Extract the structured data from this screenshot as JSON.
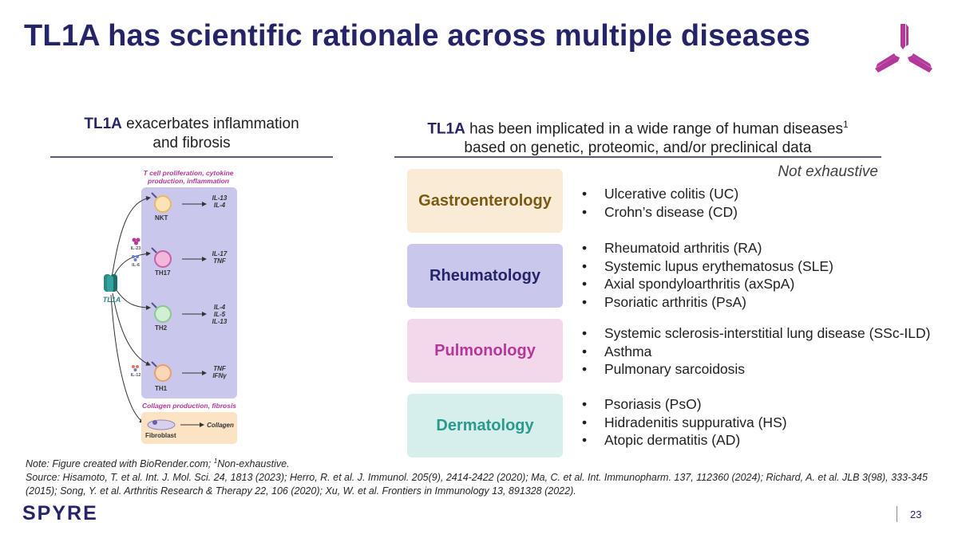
{
  "title": "TL1A has scientific rationale across multiple diseases",
  "left_header": {
    "strong": "TL1A",
    "line1_rest": " exacerbates inflammation",
    "line2": "and fibrosis"
  },
  "right_header": {
    "strong": "TL1A",
    "line1_rest": " has been implicated in a wide range of human diseases",
    "sup": "1",
    "line2": "based on genetic, proteomic, and/or preclinical data"
  },
  "not_exhaustive": "Not exhaustive",
  "figure": {
    "top_caption_1": "T cell proliferation, cytokine",
    "top_caption_2": "production, inflammation",
    "cells": [
      {
        "name": "NKT",
        "out1": "IL-13",
        "out2": "IL-4",
        "out3": "",
        "in1": "",
        "in2": ""
      },
      {
        "name": "TH17",
        "out1": "IL-17",
        "out2": "TNF",
        "out3": "",
        "in1": "IL-23",
        "in2": "IL-6"
      },
      {
        "name": "TH2",
        "out1": "IL-4",
        "out2": "IL-5",
        "out3": "IL-13",
        "in1": "",
        "in2": ""
      },
      {
        "name": "TH1",
        "out1": "TNF",
        "out2": "IFNγ",
        "out3": "",
        "in1": "IL-12",
        "in2": ""
      }
    ],
    "tl1a_label": "TL1A",
    "bottom_caption": "Collagen production, fibrosis",
    "fibroblast": "Fibroblast",
    "collagen": "Collagen"
  },
  "categories": [
    {
      "name": "Gastroenterology",
      "bg": "#faebd7",
      "fg": "#7a5a12",
      "diseases": [
        "Ulcerative colitis (UC)",
        "Crohn’s disease (CD)"
      ]
    },
    {
      "name": "Rheumatology",
      "bg": "#c9c8ec",
      "fg": "#262468",
      "diseases": [
        "Rheumatoid arthritis (RA)",
        "Systemic lupus erythematosus (SLE)",
        "Axial spondyloarthritis (axSpA)",
        "Psoriatic arthritis (PsA)"
      ]
    },
    {
      "name": "Pulmonology",
      "bg": "#f3d8ec",
      "fg": "#b2399a",
      "diseases": [
        "Systemic sclerosis-interstitial lung disease (SSc-ILD)",
        "Asthma",
        "Pulmonary sarcoidosis"
      ]
    },
    {
      "name": "Dermatology",
      "bg": "#d7efec",
      "fg": "#2a9a8c",
      "diseases": [
        "Psoriasis (PsO)",
        "Hidradenitis suppurativa (HS)",
        "Atopic dermatitis (AD)"
      ]
    }
  ],
  "footnote": {
    "note_a": "Note: Figure created with BioRender.com; ",
    "note_sup": "1",
    "note_b": "Non-exhaustive.",
    "source": "Source: Hisamoto, T. et al. Int. J. Mol. Sci. 24, 1813 (2023); Herro, R. et al. J. Immunol. 205(9), 2414-2422 (2020); Ma, C. et al. Int. Immunopharm. 137, 112360 (2024); Richard, A. et al. JLB 3(98), 333-345 (2015); Song, Y. et al. Arthritis Research & Therapy 22, 106 (2020); Xu, W. et al. Frontiers in Immunology 13, 891328 (2022)."
  },
  "brand": "SPYRE",
  "page_number": "23"
}
